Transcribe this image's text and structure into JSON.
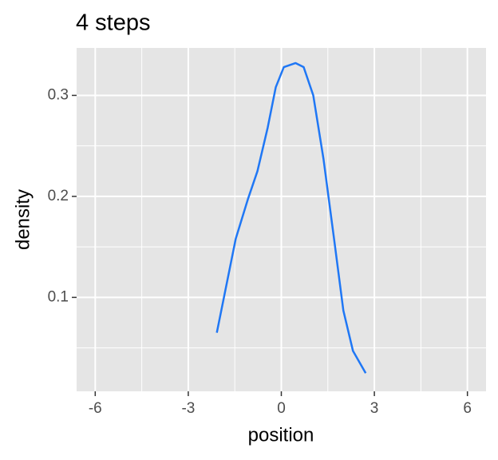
{
  "chart_data": {
    "type": "line",
    "title": "4 steps",
    "x_label": "position",
    "y_label": "density",
    "series": [
      {
        "color": "#1f77f5",
        "x": [
          -2.08,
          -1.47,
          -1.08,
          -0.77,
          -0.44,
          -0.18,
          0.08,
          0.46,
          0.72,
          1.03,
          1.36,
          1.7,
          2.0,
          2.31,
          2.72
        ],
        "values": [
          0.065,
          0.158,
          0.197,
          0.225,
          0.268,
          0.308,
          0.328,
          0.332,
          0.328,
          0.3,
          0.237,
          0.158,
          0.087,
          0.047,
          0.025
        ]
      }
    ],
    "xlim": [
      -6.6,
      6.6
    ],
    "ylim": [
      0.007,
      0.347
    ],
    "xticks": [
      -6,
      -3,
      0,
      3,
      6
    ],
    "yticks": [
      0.1,
      0.2,
      0.3
    ],
    "x_minor_grid": [
      -4.5,
      -1.5,
      1.5,
      4.5
    ],
    "y_minor_grid": [
      0.05,
      0.15,
      0.25
    ],
    "grid": true,
    "panel_color": "#e5e5e5"
  }
}
